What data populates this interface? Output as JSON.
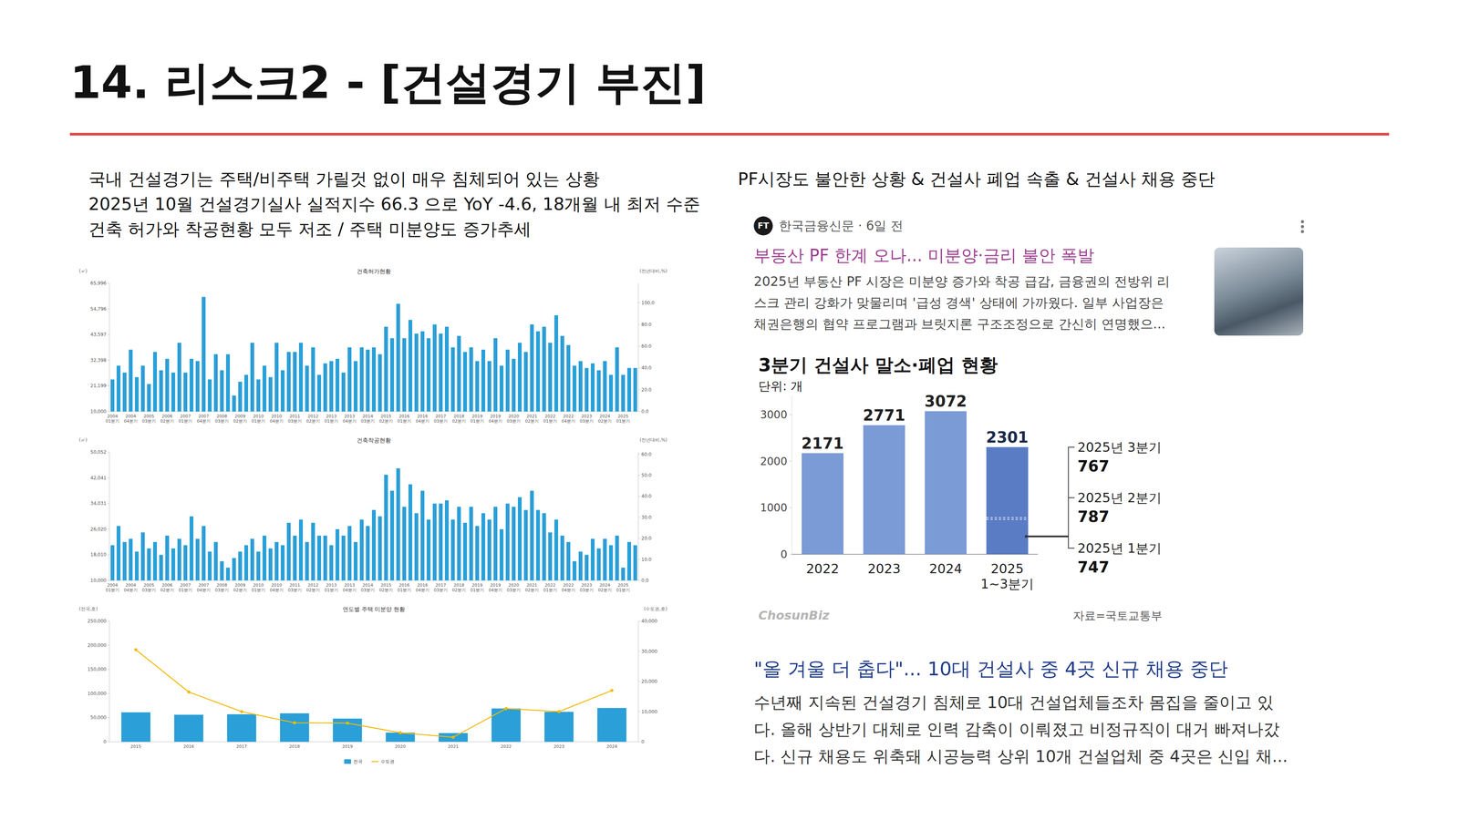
{
  "header": {
    "title": "14. 리스크2 - [건설경기 부진]"
  },
  "left": {
    "lines": [
      "국내 건설경기는 주택/비주택 가릴것 없이 매우 침체되어 있는 상황",
      "2025년 10월 건설경기실사 실적지수 66.3 으로 YoY -4.6, 18개월 내 최저 수준",
      "건축 허가와 착공현황 모두 저조 / 주택 미분양도 증가추세"
    ]
  },
  "right": {
    "lines": [
      "PF시장도 불안한 상황 & 건설사 폐업 속출 & 건설사 채용 중단"
    ]
  },
  "news1": {
    "logo": "FT",
    "source": "한국금융신문 · 6일 전",
    "headline": "부동산 PF 한계 오나... 미분양·금리 불안 폭발",
    "body": [
      "2025년 부동산 PF 시장은 미분양 증가와 착공 급감, 금융권의 전방위 리",
      "스크 관리 강화가 맞물리며 '급성 경색' 상태에 가까웠다. 일부 사업장은",
      "채권은행의 협약 프로그램과 브릿지론 구조조정으로 간신히 연명했으..."
    ]
  },
  "news2": {
    "headline": "\"올 겨울 더 춥다\"... 10대 건설사 중 4곳 신규 채용 중단",
    "body": [
      "수년째 지속된 건설경기 침체로 10대 건설업체들조차 몸집을 줄이고 있",
      "다. 올해 상반기 대체로 인력 감축이 이뤄졌고 비정규직이 대거 빠져나갔",
      "다. 신규 채용도 위축돼 시공능력 상위 10개 건설업체 중 4곳은 신입 채..."
    ]
  },
  "chart_data": [
    {
      "type": "bar",
      "title": "건축허가현황",
      "y_label": "(㎡)",
      "y2_label": "(전년대비,%)",
      "categories": [
        "2004 01분기",
        null,
        null,
        "2004 04분기",
        null,
        null,
        "2005 03분기",
        null,
        null,
        "2006 02분기",
        null,
        null,
        "2007 01분기",
        null,
        null,
        "2007 04분기",
        null,
        null,
        "2008 03분기",
        null,
        null,
        "2009 02분기",
        null,
        null,
        "2010 01분기",
        null,
        null,
        "2010 04분기",
        null,
        null,
        "2011 03분기",
        null,
        null,
        "2012 02분기",
        null,
        null,
        "2013 01분기",
        null,
        null,
        "2013 04분기",
        null,
        null,
        "2014 03분기",
        null,
        null,
        "2015 02분기",
        null,
        null,
        "2016 01분기",
        null,
        null,
        "2016 04분기",
        null,
        null,
        "2017 03분기",
        null,
        null,
        "2018 02분기",
        null,
        null,
        "2019 01분기",
        null,
        null,
        "2019 04분기",
        null,
        null,
        "2020 03분기",
        null,
        null,
        "2021 02분기",
        null,
        null,
        "2022 01분기",
        null,
        null,
        "2022 04분기",
        null,
        null,
        "2023 03분기",
        null,
        null,
        "2024 02분기",
        null,
        null,
        "2025 01분기",
        null,
        null
      ],
      "series": [
        {
          "color": "#2a9fd8",
          "values": [
            24000,
            30000,
            27000,
            37000,
            25000,
            30000,
            22000,
            36000,
            28000,
            33000,
            27000,
            40000,
            27000,
            33000,
            32000,
            60000,
            24000,
            35000,
            28000,
            35000,
            17000,
            23000,
            26000,
            40000,
            24000,
            30000,
            25000,
            40000,
            28000,
            36000,
            36000,
            40000,
            30000,
            38000,
            26000,
            31000,
            32000,
            33000,
            27000,
            38000,
            32000,
            38000,
            37000,
            38000,
            35000,
            47000,
            42000,
            57000,
            42000,
            50000,
            44000,
            45000,
            42000,
            48000,
            44000,
            47000,
            38000,
            43000,
            36000,
            38000,
            32000,
            37000,
            32000,
            42000,
            30000,
            37000,
            33000,
            40000,
            36000,
            48000,
            45000,
            47000,
            40000,
            52000,
            43000,
            39000,
            30000,
            32000,
            29000,
            31000,
            28000,
            32000,
            26000,
            38000,
            26000,
            29000,
            29000
          ]
        }
      ],
      "ylim": [
        10000,
        65996
      ],
      "yticks": [
        {
          "value": 10000,
          "label": "10,000"
        },
        {
          "value": 21199,
          "label": "21,199"
        },
        {
          "value": 32398,
          "label": "32,398"
        },
        {
          "value": 43597,
          "label": "43,597"
        },
        {
          "value": 54796,
          "label": "54,796"
        },
        {
          "value": 65996,
          "label": "65,996"
        }
      ],
      "y2lim": [
        0,
        118
      ],
      "y2ticks": [
        {
          "value": 0,
          "label": "0.0"
        },
        {
          "value": 20,
          "label": "20.0"
        },
        {
          "value": 40,
          "label": "40.0"
        },
        {
          "value": 60,
          "label": "60.0"
        },
        {
          "value": 80,
          "label": "80.0"
        },
        {
          "value": 100,
          "label": "100.0"
        }
      ],
      "grid": false
    },
    {
      "type": "bar",
      "title": "건축착공현황",
      "y_label": "(㎡)",
      "y2_label": "(전년대비,%)",
      "categories": [
        "2004 01분기",
        null,
        null,
        "2004 04분기",
        null,
        null,
        "2005 03분기",
        null,
        null,
        "2006 02분기",
        null,
        null,
        "2007 01분기",
        null,
        null,
        "2007 04분기",
        null,
        null,
        "2008 03분기",
        null,
        null,
        "2009 02분기",
        null,
        null,
        "2010 01분기",
        null,
        null,
        "2010 04분기",
        null,
        null,
        "2011 03분기",
        null,
        null,
        "2012 02분기",
        null,
        null,
        "2013 01분기",
        null,
        null,
        "2013 04분기",
        null,
        null,
        "2014 03분기",
        null,
        null,
        "2015 02분기",
        null,
        null,
        "2016 01분기",
        null,
        null,
        "2016 04분기",
        null,
        null,
        "2017 03분기",
        null,
        null,
        "2018 02분기",
        null,
        null,
        "2019 01분기",
        null,
        null,
        "2019 04분기",
        null,
        null,
        "2020 03분기",
        null,
        null,
        "2021 02분기",
        null,
        null,
        "2022 01분기",
        null,
        null,
        "2022 04분기",
        null,
        null,
        "2023 03분기",
        null,
        null,
        "2024 02분기",
        null,
        null,
        "2025 01분기",
        null,
        null
      ],
      "series": [
        {
          "color": "#2a9fd8",
          "values": [
            21000,
            27000,
            22000,
            23000,
            19000,
            25000,
            20000,
            22000,
            18000,
            24000,
            20000,
            23000,
            21000,
            30000,
            23000,
            27000,
            19000,
            22000,
            16000,
            14000,
            17000,
            19000,
            21000,
            23000,
            19000,
            24000,
            20000,
            22000,
            21000,
            28000,
            24000,
            29000,
            22000,
            28000,
            24000,
            24000,
            21000,
            26000,
            24000,
            27000,
            22000,
            29000,
            27000,
            32000,
            30000,
            43000,
            38000,
            45000,
            33000,
            40000,
            31000,
            38000,
            29000,
            34000,
            34000,
            35000,
            29000,
            33000,
            28000,
            33000,
            27000,
            31000,
            29000,
            33000,
            26000,
            34000,
            33000,
            36000,
            32000,
            38000,
            32000,
            31000,
            25000,
            29000,
            24000,
            22000,
            16000,
            19000,
            18000,
            23000,
            20000,
            23000,
            21000,
            24000,
            14000,
            22000,
            21000
          ]
        }
      ],
      "ylim": [
        10000,
        50052
      ],
      "yticks": [
        {
          "value": 10000,
          "label": "10,000"
        },
        {
          "value": 18010,
          "label": "18,010"
        },
        {
          "value": 26020,
          "label": "26,020"
        },
        {
          "value": 34031,
          "label": "34,031"
        },
        {
          "value": 42041,
          "label": "42,041"
        },
        {
          "value": 50052,
          "label": "50,052"
        }
      ],
      "y2lim": [
        0,
        61
      ],
      "y2ticks": [
        {
          "value": 0,
          "label": "0.0"
        },
        {
          "value": 10,
          "label": "10.0"
        },
        {
          "value": 20,
          "label": "20.0"
        },
        {
          "value": 30,
          "label": "30.0"
        },
        {
          "value": 40,
          "label": "40.0"
        },
        {
          "value": 50,
          "label": "50.0"
        },
        {
          "value": 60,
          "label": "60.0"
        }
      ],
      "grid": false
    },
    {
      "type": "bar",
      "title": "연도별 주택 미분양 현황",
      "y_label": "(전국,호)",
      "y2_label": "(수도권,호)",
      "categories": [
        "2015",
        "2016",
        "2017",
        "2018",
        "2019",
        "2020",
        "2021",
        "2022",
        "2023",
        "2024"
      ],
      "series": [
        {
          "name": "전국",
          "type": "bar",
          "color": "#2a9fd8",
          "values": [
            61000,
            56000,
            57000,
            59000,
            48000,
            19000,
            18000,
            69000,
            62000,
            70000
          ]
        },
        {
          "name": "수도권",
          "type": "line",
          "axis": "y2",
          "color": "#f2b807",
          "marker": "circle",
          "values": [
            30500,
            16500,
            10000,
            6300,
            6200,
            3000,
            1500,
            11000,
            10000,
            17000
          ]
        }
      ],
      "ylim": [
        0,
        250000
      ],
      "yticks": [
        0,
        {
          "value": 50000,
          "label": "50,000"
        },
        {
          "value": 100000,
          "label": "100,000"
        },
        {
          "value": 150000,
          "label": "150,000"
        },
        {
          "value": 200000,
          "label": "200,000"
        },
        {
          "value": 250000,
          "label": "250,000"
        }
      ],
      "y2lim": [
        0,
        40000
      ],
      "y2ticks": [
        0,
        {
          "value": 10000,
          "label": "10,000"
        },
        {
          "value": 20000,
          "label": "20,000"
        },
        {
          "value": 30000,
          "label": "30,000"
        },
        {
          "value": 40000,
          "label": "40,000"
        }
      ],
      "grid": false,
      "legend": "bottom"
    },
    {
      "type": "bar",
      "title": "3분기 건설사 말소·폐업 현황",
      "y_label": "단위: 개",
      "categories": [
        "2022",
        "2023",
        "2024",
        "2025 1~3분기"
      ],
      "series": [
        {
          "colors": [
            "#7b9bd6",
            "#7b9bd6",
            "#7b9bd6",
            "#5a7cc4"
          ],
          "values": [
            2171,
            2771,
            3072,
            2301
          ]
        }
      ],
      "breakdown": [
        {
          "label": "2025년 1분기",
          "value": 747
        },
        {
          "label": "2025년 2분기",
          "value": 787
        },
        {
          "label": "2025년 3분기",
          "value": 767
        }
      ],
      "ylim": [
        0,
        3400
      ],
      "yticks": [
        0,
        1000,
        2000,
        3000
      ],
      "data_labels": true,
      "grid": false,
      "annotations": [
        {
          "text": "ChosunBiz"
        },
        {
          "text": "자료=국토교통부"
        }
      ]
    }
  ]
}
